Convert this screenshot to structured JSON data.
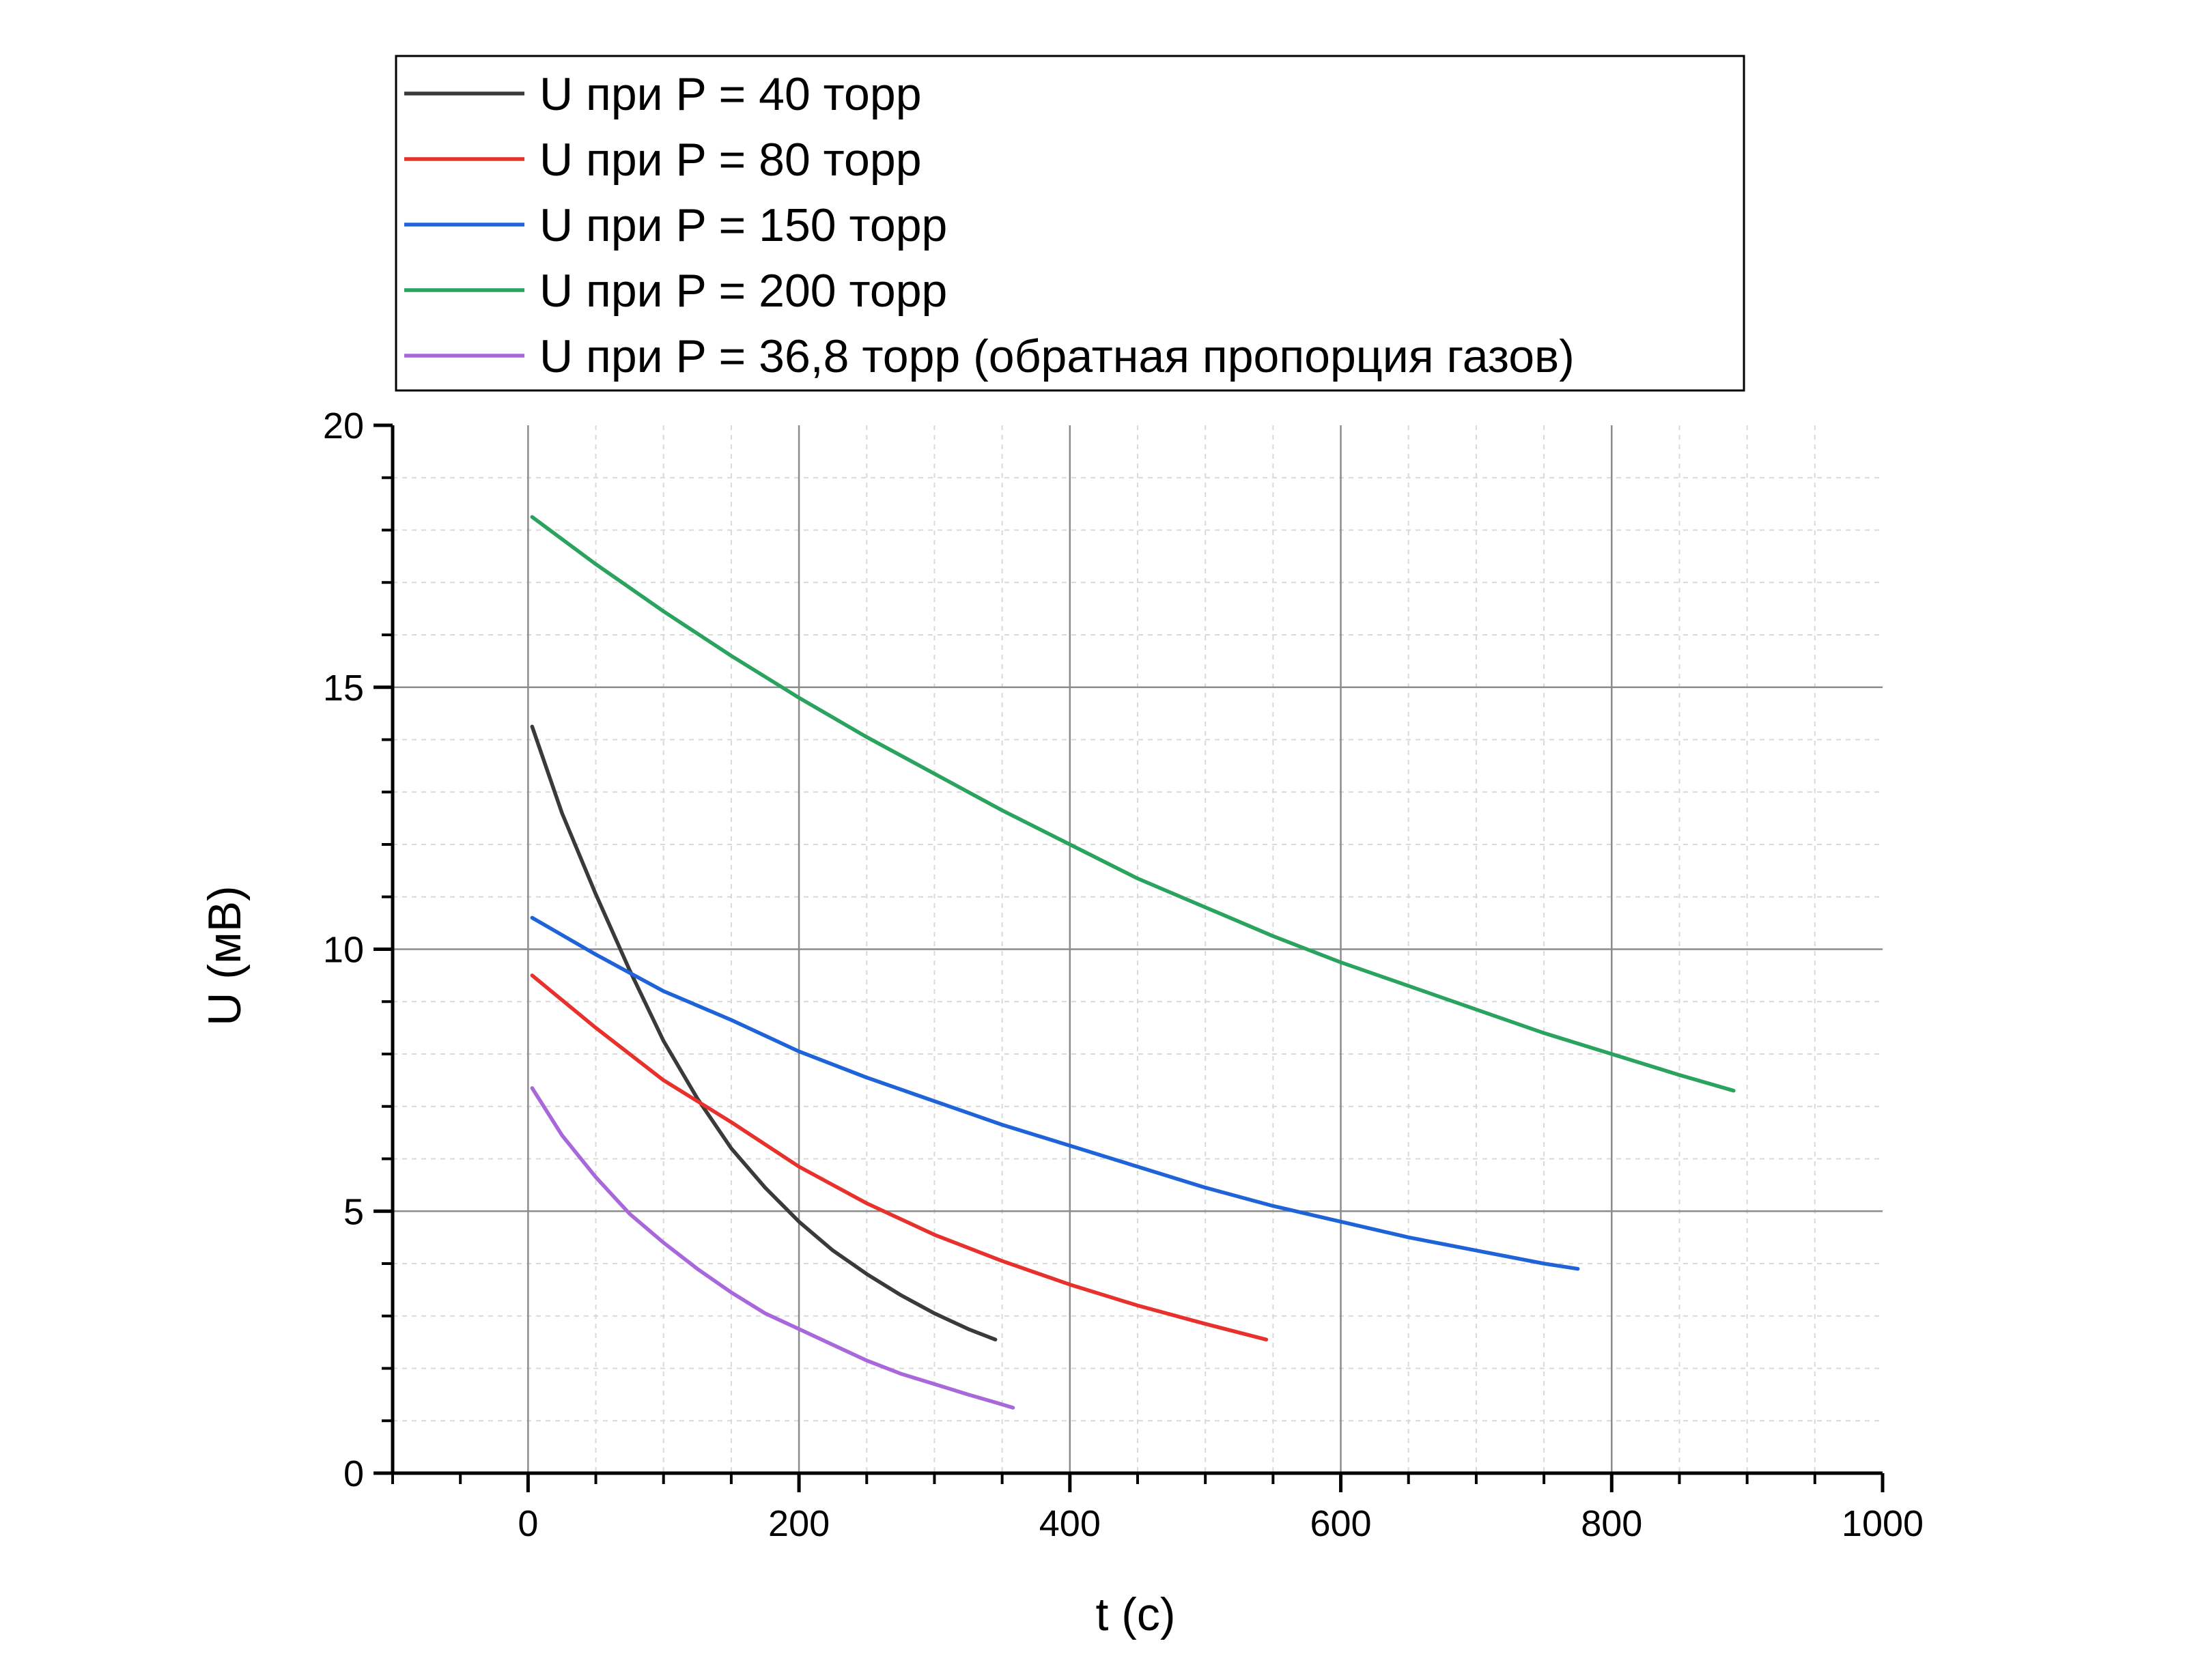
{
  "chart_data": {
    "type": "line",
    "title": "",
    "xlabel": "t (c)",
    "ylabel": "U (мВ)",
    "xlim": [
      -100,
      1000
    ],
    "ylim": [
      0,
      20
    ],
    "x_ticks": [
      0,
      200,
      400,
      600,
      800,
      1000
    ],
    "y_ticks": [
      0,
      5,
      10,
      15,
      20
    ],
    "grid": true,
    "legend_position": "top",
    "series": [
      {
        "name": "U при P = 40 торр",
        "color": "#3a3a3a",
        "x": [
          3,
          25,
          50,
          75,
          100,
          125,
          150,
          175,
          200,
          225,
          250,
          275,
          300,
          325,
          345
        ],
        "y": [
          14.25,
          12.6,
          11.05,
          9.6,
          8.25,
          7.15,
          6.2,
          5.45,
          4.8,
          4.25,
          3.8,
          3.4,
          3.05,
          2.75,
          2.55
        ]
      },
      {
        "name": "U при P = 80 торр",
        "color": "#e8302c",
        "x": [
          3,
          50,
          100,
          150,
          200,
          250,
          300,
          350,
          400,
          450,
          500,
          545
        ],
        "y": [
          9.5,
          8.5,
          7.5,
          6.7,
          5.85,
          5.15,
          4.55,
          4.05,
          3.6,
          3.2,
          2.85,
          2.55
        ]
      },
      {
        "name": "U при P = 150 торр",
        "color": "#1f63d8",
        "x": [
          3,
          50,
          100,
          150,
          200,
          250,
          300,
          350,
          400,
          450,
          500,
          550,
          600,
          650,
          700,
          750,
          775
        ],
        "y": [
          10.6,
          9.9,
          9.2,
          8.65,
          8.05,
          7.55,
          7.1,
          6.65,
          6.25,
          5.85,
          5.45,
          5.1,
          4.8,
          4.5,
          4.25,
          4.0,
          3.9
        ]
      },
      {
        "name": "U при P = 200 торр",
        "color": "#2aa35e",
        "x": [
          3,
          50,
          100,
          150,
          200,
          250,
          300,
          350,
          400,
          450,
          500,
          550,
          600,
          650,
          700,
          750,
          800,
          850,
          890
        ],
        "y": [
          18.25,
          17.35,
          16.45,
          15.6,
          14.8,
          14.05,
          13.35,
          12.65,
          12.0,
          11.35,
          10.8,
          10.25,
          9.75,
          9.3,
          8.85,
          8.4,
          8.0,
          7.6,
          7.3
        ]
      },
      {
        "name": "U при P = 36,8 торр (обратная пропорция газов)",
        "color": "#a868dc",
        "x": [
          3,
          25,
          50,
          75,
          100,
          125,
          150,
          175,
          200,
          225,
          250,
          275,
          300,
          325,
          345,
          358
        ],
        "y": [
          7.35,
          6.45,
          5.65,
          4.95,
          4.4,
          3.9,
          3.45,
          3.05,
          2.75,
          2.45,
          2.15,
          1.9,
          1.7,
          1.5,
          1.35,
          1.25
        ]
      }
    ]
  }
}
